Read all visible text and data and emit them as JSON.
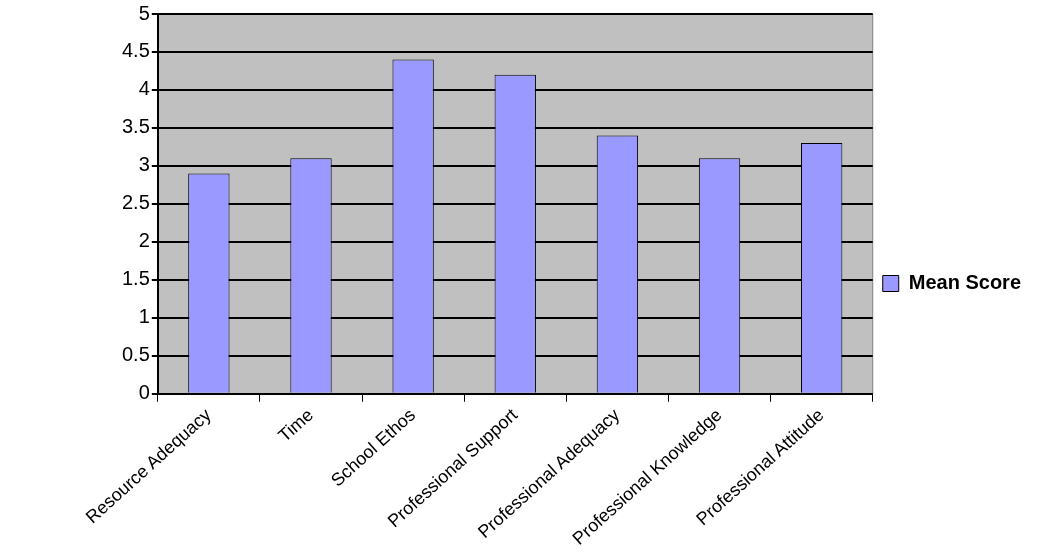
{
  "chart_data": {
    "type": "bar",
    "categories": [
      "Resource Adequacy",
      "Time",
      "School Ethos",
      "Professional Support",
      "Professional Adequacy",
      "Professional Knowledge",
      "Professional Attitude"
    ],
    "series": [
      {
        "name": "Mean Score",
        "color": "#9999ff",
        "values": [
          2.9,
          3.1,
          4.4,
          4.2,
          3.4,
          3.1,
          3.3
        ]
      }
    ],
    "ylim": [
      0,
      5
    ],
    "yticks": [
      0,
      0.5,
      1,
      1.5,
      2,
      2.5,
      3,
      3.5,
      4,
      4.5,
      5
    ],
    "grid": "y",
    "legend": "right"
  }
}
